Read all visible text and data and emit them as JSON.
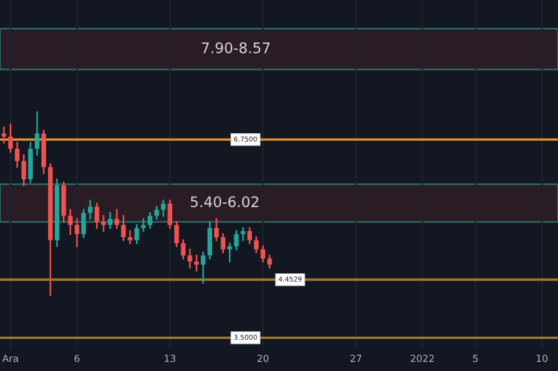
{
  "chart_data": {
    "type": "candlestick",
    "x": [
      "2021-11-30T12:00",
      "2021-12-01T00:00",
      "2021-12-01T12:00",
      "2021-12-02T00:00",
      "2021-12-02T12:00",
      "2021-12-03T00:00",
      "2021-12-03T12:00",
      "2021-12-04T00:00",
      "2021-12-04T12:00",
      "2021-12-05T00:00",
      "2021-12-05T12:00",
      "2021-12-06T00:00",
      "2021-12-06T12:00",
      "2021-12-07T00:00",
      "2021-12-07T12:00",
      "2021-12-08T00:00",
      "2021-12-08T12:00",
      "2021-12-09T00:00",
      "2021-12-09T12:00",
      "2021-12-10T00:00",
      "2021-12-10T12:00",
      "2021-12-11T00:00",
      "2021-12-11T12:00",
      "2021-12-12T00:00",
      "2021-12-12T12:00",
      "2021-12-13T00:00",
      "2021-12-13T12:00",
      "2021-12-14T00:00",
      "2021-12-14T12:00",
      "2021-12-15T00:00",
      "2021-12-15T12:00",
      "2021-12-16T00:00",
      "2021-12-16T12:00",
      "2021-12-17T00:00",
      "2021-12-17T12:00",
      "2021-12-18T00:00",
      "2021-12-18T12:00",
      "2021-12-19T00:00",
      "2021-12-19T12:00",
      "2021-12-20T00:00",
      "2021-12-20T12:00"
    ],
    "ohlc": [
      [
        6.85,
        6.95,
        6.7,
        6.8
      ],
      [
        6.8,
        7.0,
        6.55,
        6.6
      ],
      [
        6.6,
        6.7,
        6.3,
        6.4
      ],
      [
        6.4,
        6.5,
        6.0,
        6.1
      ],
      [
        6.1,
        6.7,
        6.05,
        6.6
      ],
      [
        6.6,
        7.2,
        6.5,
        6.85
      ],
      [
        6.85,
        6.9,
        6.2,
        6.3
      ],
      [
        6.3,
        6.35,
        4.2,
        5.1
      ],
      [
        5.1,
        6.1,
        5.0,
        6.0
      ],
      [
        6.0,
        6.05,
        5.4,
        5.5
      ],
      [
        5.5,
        5.6,
        5.2,
        5.35
      ],
      [
        5.35,
        5.45,
        5.0,
        5.2
      ],
      [
        5.2,
        5.6,
        5.15,
        5.55
      ],
      [
        5.55,
        5.75,
        5.45,
        5.65
      ],
      [
        5.65,
        5.7,
        5.3,
        5.4
      ],
      [
        5.4,
        5.5,
        5.25,
        5.35
      ],
      [
        5.35,
        5.55,
        5.3,
        5.45
      ],
      [
        5.45,
        5.6,
        5.3,
        5.35
      ],
      [
        5.35,
        5.5,
        5.1,
        5.15
      ],
      [
        5.15,
        5.25,
        5.05,
        5.1
      ],
      [
        5.1,
        5.35,
        5.05,
        5.3
      ],
      [
        5.3,
        5.45,
        5.25,
        5.35
      ],
      [
        5.35,
        5.55,
        5.3,
        5.5
      ],
      [
        5.5,
        5.65,
        5.45,
        5.6
      ],
      [
        5.6,
        5.75,
        5.5,
        5.7
      ],
      [
        5.7,
        5.75,
        5.3,
        5.35
      ],
      [
        5.35,
        5.4,
        5.0,
        5.05
      ],
      [
        5.05,
        5.1,
        4.8,
        4.85
      ],
      [
        4.85,
        4.95,
        4.65,
        4.75
      ],
      [
        4.75,
        4.85,
        4.6,
        4.7
      ],
      [
        4.7,
        4.9,
        4.4,
        4.85
      ],
      [
        4.85,
        5.4,
        4.8,
        5.3
      ],
      [
        5.3,
        5.45,
        5.1,
        5.15
      ],
      [
        5.15,
        5.2,
        4.9,
        4.95
      ],
      [
        4.95,
        5.05,
        4.75,
        5.0
      ],
      [
        5.0,
        5.25,
        4.95,
        5.2
      ],
      [
        5.2,
        5.3,
        5.1,
        5.25
      ],
      [
        5.25,
        5.3,
        5.05,
        5.1
      ],
      [
        5.1,
        5.15,
        4.9,
        4.95
      ],
      [
        4.95,
        5.0,
        4.75,
        4.8
      ],
      [
        4.8,
        4.85,
        4.65,
        4.7
      ]
    ],
    "colors": [
      "#ef5350",
      "#ef5350",
      "#ef5350",
      "#ef5350",
      "#26a69a",
      "#26a69a",
      "#ef5350",
      "#ef5350",
      "#26a69a",
      "#ef5350",
      "#ef5350",
      "#ef5350",
      "#26a69a",
      "#26a69a",
      "#ef5350",
      "#ef5350",
      "#26a69a",
      "#ef5350",
      "#ef5350",
      "#ef5350",
      "#26a69a",
      "#26a69a",
      "#26a69a",
      "#26a69a",
      "#26a69a",
      "#ef5350",
      "#ef5350",
      "#ef5350",
      "#ef5350",
      "#ef5350",
      "#26a69a",
      "#26a69a",
      "#ef5350",
      "#ef5350",
      "#26a69a",
      "#26a69a",
      "#26a69a",
      "#ef5350",
      "#ef5350",
      "#ef5350",
      "#ef5350"
    ],
    "xlim": [
      "2021-11-30T05:00",
      "2022-01-11T05:00"
    ],
    "xticks": [
      {
        "value": "2021-12-01",
        "label": "Ara"
      },
      {
        "value": "2021-12-06",
        "label": "6"
      },
      {
        "value": "2021-12-13",
        "label": "13"
      },
      {
        "value": "2021-12-20",
        "label": "20"
      },
      {
        "value": "2021-12-27",
        "label": "27"
      },
      {
        "value": "2022-01-01",
        "label": "2022"
      },
      {
        "value": "2022-01-05",
        "label": "5"
      },
      {
        "value": "2022-01-10",
        "label": "10"
      }
    ],
    "ylim": [
      3.32,
      9.04
    ],
    "tick_labels": "x",
    "grid": "x",
    "ref_lines": [
      {
        "axis": "y",
        "value": 6.75,
        "label": "6.7500",
        "color": "#e8912c"
      },
      {
        "axis": "y",
        "value": 4.4529,
        "label": "4.4529",
        "color": "#a07a2c"
      },
      {
        "axis": "y",
        "value": 3.5,
        "label": "3.5000",
        "color": "#a07a2c"
      }
    ],
    "bands": [
      {
        "axis": "y",
        "from": 7.9,
        "to": 8.57,
        "label": "7.90-8.57",
        "color": "#2a1c24"
      },
      {
        "axis": "y",
        "from": 5.4,
        "to": 6.02,
        "label": "5.40-6.02",
        "color": "#2a1c24"
      }
    ]
  }
}
